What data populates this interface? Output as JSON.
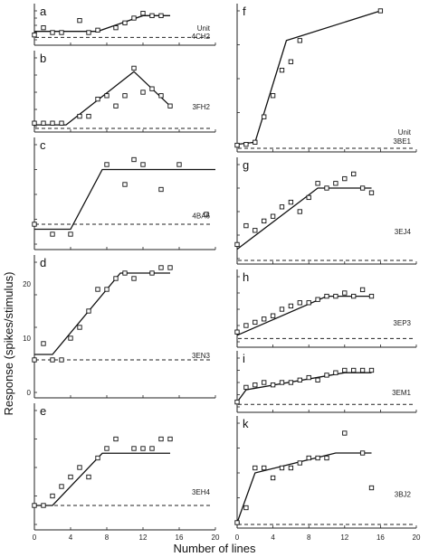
{
  "figure": {
    "xlabel": "Number of lines",
    "ylabel": "Response (spikes/stimulus)",
    "unit_word": "Unit",
    "x_ticks": [
      "0",
      "4",
      "8",
      "12",
      "16",
      "20"
    ],
    "x_ticks_right": [
      "0",
      "4",
      "8",
      "12",
      "16",
      "20"
    ],
    "y_ticks_d": [
      "0",
      "10",
      "20"
    ]
  },
  "chart_data": [
    {
      "type": "scatter",
      "panel": "a",
      "unit": "4CH2",
      "column": "left",
      "xlim": [
        0,
        20
      ],
      "ylim": [
        0,
        12
      ],
      "points": [
        [
          0,
          2
        ],
        [
          1,
          5
        ],
        [
          2,
          3
        ],
        [
          3,
          3
        ],
        [
          5,
          8
        ],
        [
          6,
          3
        ],
        [
          7,
          4
        ],
        [
          9,
          5
        ],
        [
          10,
          7
        ],
        [
          11,
          9
        ],
        [
          12,
          11
        ],
        [
          13,
          10
        ],
        [
          14,
          10
        ]
      ],
      "fit": [
        [
          0,
          3.5
        ],
        [
          7,
          3.5
        ],
        [
          12,
          10
        ],
        [
          15,
          10
        ]
      ],
      "baseline": 1
    },
    {
      "type": "scatter",
      "panel": "b",
      "unit": "3FH2",
      "column": "left",
      "xlim": [
        0,
        20
      ],
      "ylim": [
        0,
        20
      ],
      "points": [
        [
          0,
          1
        ],
        [
          1,
          1
        ],
        [
          2,
          1
        ],
        [
          3,
          1
        ],
        [
          5,
          3
        ],
        [
          6,
          3
        ],
        [
          7,
          8
        ],
        [
          8,
          9
        ],
        [
          9,
          6
        ],
        [
          10,
          9
        ],
        [
          11,
          17
        ],
        [
          12,
          10
        ],
        [
          13,
          11
        ],
        [
          14,
          9
        ],
        [
          15,
          6
        ]
      ],
      "fit": [
        [
          0,
          0.5
        ],
        [
          3.5,
          0.5
        ],
        [
          11,
          16
        ],
        [
          15,
          6
        ]
      ],
      "baseline": -1
    },
    {
      "type": "scatter",
      "panel": "c",
      "unit": "4BA6",
      "column": "left",
      "xlim": [
        0,
        20
      ],
      "ylim": [
        0,
        20
      ],
      "points": [
        [
          0,
          4
        ],
        [
          2,
          2
        ],
        [
          4,
          2
        ],
        [
          8,
          16
        ],
        [
          10,
          12
        ],
        [
          11,
          17
        ],
        [
          12,
          16
        ],
        [
          14,
          11
        ],
        [
          16,
          16
        ],
        [
          19,
          6
        ]
      ],
      "fit": [
        [
          0,
          3
        ],
        [
          4,
          3
        ],
        [
          7.5,
          15
        ],
        [
          20,
          15
        ]
      ],
      "baseline": 4
    },
    {
      "type": "scatter",
      "panel": "d",
      "unit": "3EN3",
      "column": "left",
      "xlim": [
        0,
        20
      ],
      "ylim": [
        0,
        24
      ],
      "points": [
        [
          0,
          6
        ],
        [
          1,
          9
        ],
        [
          2,
          6
        ],
        [
          3,
          6
        ],
        [
          4,
          10
        ],
        [
          5,
          12
        ],
        [
          6,
          15
        ],
        [
          7,
          19
        ],
        [
          8,
          19
        ],
        [
          9,
          21
        ],
        [
          10,
          22
        ],
        [
          11,
          21
        ],
        [
          13,
          22
        ],
        [
          14,
          23
        ],
        [
          15,
          23
        ]
      ],
      "fit": [
        [
          0,
          7
        ],
        [
          2,
          7
        ],
        [
          9.5,
          22
        ],
        [
          15,
          22
        ]
      ],
      "baseline": 6
    },
    {
      "type": "scatter",
      "panel": "e",
      "unit": "3EH4",
      "column": "left",
      "xlim": [
        0,
        20
      ],
      "ylim": [
        0,
        12
      ],
      "points": [
        [
          0,
          2
        ],
        [
          1,
          2
        ],
        [
          2,
          3
        ],
        [
          3,
          4
        ],
        [
          4,
          5
        ],
        [
          5,
          6
        ],
        [
          6,
          5
        ],
        [
          7,
          7
        ],
        [
          8,
          8
        ],
        [
          9,
          9
        ],
        [
          11,
          8
        ],
        [
          12,
          8
        ],
        [
          13,
          8
        ],
        [
          14,
          9
        ],
        [
          15,
          9
        ]
      ],
      "fit": [
        [
          0,
          2
        ],
        [
          2,
          2
        ],
        [
          7.5,
          7.5
        ],
        [
          15,
          7.5
        ]
      ],
      "baseline": 2
    },
    {
      "type": "scatter",
      "panel": "f",
      "unit": "3BE1",
      "column": "right",
      "xlim": [
        0,
        20
      ],
      "ylim": [
        0,
        32
      ],
      "points": [
        [
          0,
          0.3
        ],
        [
          1,
          0.5
        ],
        [
          2,
          1
        ],
        [
          3,
          7
        ],
        [
          4,
          12
        ],
        [
          5,
          18
        ],
        [
          6,
          20
        ],
        [
          7,
          25
        ],
        [
          16,
          32
        ]
      ],
      "fit": [
        [
          0,
          0.5
        ],
        [
          2,
          1
        ],
        [
          5.5,
          25
        ],
        [
          7,
          26
        ],
        [
          16,
          32
        ]
      ],
      "baseline": -1
    },
    {
      "type": "scatter",
      "panel": "g",
      "unit": "3EJ4",
      "column": "right",
      "xlim": [
        0,
        20
      ],
      "ylim": [
        0,
        20
      ],
      "points": [
        [
          0,
          3
        ],
        [
          1,
          7
        ],
        [
          2,
          6
        ],
        [
          3,
          8
        ],
        [
          4,
          9
        ],
        [
          5,
          11
        ],
        [
          6,
          12
        ],
        [
          7,
          10
        ],
        [
          8,
          13
        ],
        [
          9,
          16
        ],
        [
          10,
          15
        ],
        [
          11,
          16
        ],
        [
          12,
          17
        ],
        [
          13,
          18
        ],
        [
          14,
          15
        ],
        [
          15,
          14
        ]
      ],
      "fit": [
        [
          0,
          2
        ],
        [
          9,
          15
        ],
        [
          15,
          15
        ]
      ],
      "baseline": -1
    },
    {
      "type": "scatter",
      "panel": "h",
      "unit": "3EP3",
      "column": "right",
      "xlim": [
        0,
        20
      ],
      "ylim": [
        0,
        20
      ],
      "points": [
        [
          0,
          3
        ],
        [
          1,
          5
        ],
        [
          2,
          6
        ],
        [
          3,
          7
        ],
        [
          4,
          8
        ],
        [
          5,
          10
        ],
        [
          6,
          11
        ],
        [
          7,
          12
        ],
        [
          8,
          12
        ],
        [
          9,
          13
        ],
        [
          10,
          14
        ],
        [
          11,
          14
        ],
        [
          12,
          15
        ],
        [
          13,
          14
        ],
        [
          14,
          16
        ],
        [
          15,
          14
        ]
      ],
      "fit": [
        [
          0,
          2
        ],
        [
          10,
          14
        ],
        [
          15,
          14
        ]
      ],
      "baseline": 1
    },
    {
      "type": "scatter",
      "panel": "i",
      "unit": "3EM1",
      "column": "right",
      "xlim": [
        0,
        20
      ],
      "ylim": [
        0,
        20
      ],
      "points": [
        [
          0,
          2
        ],
        [
          1,
          8
        ],
        [
          2,
          9
        ],
        [
          3,
          10
        ],
        [
          4,
          9
        ],
        [
          5,
          10
        ],
        [
          6,
          10
        ],
        [
          7,
          11
        ],
        [
          8,
          12
        ],
        [
          9,
          11
        ],
        [
          10,
          13
        ],
        [
          11,
          14
        ],
        [
          12,
          15
        ],
        [
          13,
          15
        ],
        [
          14,
          15
        ],
        [
          15,
          15
        ]
      ],
      "fit": [
        [
          0,
          2
        ],
        [
          1,
          7
        ],
        [
          12,
          14
        ],
        [
          15,
          14
        ]
      ],
      "baseline": 1
    },
    {
      "type": "scatter",
      "panel": "k",
      "unit": "3BJ2",
      "column": "right",
      "xlim": [
        0,
        20
      ],
      "ylim": [
        0,
        20
      ],
      "points": [
        [
          0,
          0
        ],
        [
          1,
          3
        ],
        [
          2,
          11
        ],
        [
          3,
          11
        ],
        [
          4,
          9
        ],
        [
          5,
          11
        ],
        [
          6,
          11
        ],
        [
          7,
          12
        ],
        [
          8,
          13
        ],
        [
          9,
          13
        ],
        [
          10,
          13
        ],
        [
          12,
          18
        ],
        [
          14,
          14
        ],
        [
          15,
          7
        ]
      ],
      "fit": [
        [
          0,
          0
        ],
        [
          2,
          10
        ],
        [
          11,
          14
        ],
        [
          15,
          14
        ]
      ],
      "baseline": -1
    }
  ]
}
